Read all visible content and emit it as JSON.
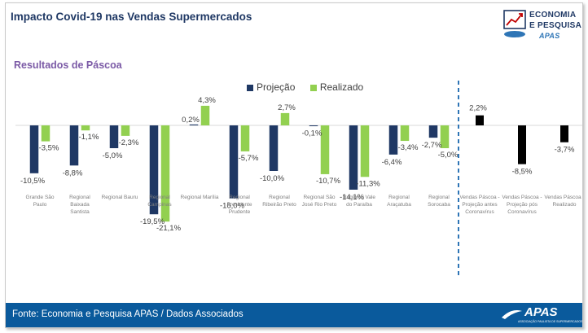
{
  "header": {
    "title": "Impacto Covid-19 nas Vendas Supermercados",
    "logo_line1": "ECONOMIA",
    "logo_line2": "E PESQUISA",
    "logo_brand": "APAS"
  },
  "section": {
    "subtitle": "Resultados de Páscoa"
  },
  "footer": {
    "source": "Fonte: Economia e Pesquisa APAS / Dados Associados",
    "logo_word": "APAS",
    "logo_sub": "ASSOCIAÇÃO PAULISTA DE SUPERMERCADOS"
  },
  "colors": {
    "projecao": "#1f3864",
    "realizado": "#92d050",
    "summary": "#000000",
    "divider": "#2e75b6",
    "footer": "#0a5a9c"
  },
  "chart_data": {
    "type": "bar",
    "legend_position": "top-center",
    "grid": false,
    "ylim": [
      -22,
      5
    ],
    "series": [
      {
        "name": "Projeção",
        "color": "#1f3864"
      },
      {
        "name": "Realizado",
        "color": "#92d050"
      }
    ],
    "groups": [
      {
        "label": [
          "Grande São",
          "Paulo"
        ],
        "projecao": -10.5,
        "realizado": -3.5,
        "projecao_label": "-10,5%",
        "realizado_label": "-3,5%"
      },
      {
        "label": [
          "Regional",
          "Baixada",
          "Santista"
        ],
        "projecao": -8.8,
        "realizado": -1.1,
        "projecao_label": "-8,8%",
        "realizado_label": "-1,1%"
      },
      {
        "label": [
          "Regional Bauru"
        ],
        "projecao": -5.0,
        "realizado": -2.3,
        "projecao_label": "-5,0%",
        "realizado_label": "-2,3%"
      },
      {
        "label": [
          "Regional",
          "Campinas"
        ],
        "projecao": -19.5,
        "realizado": -21.1,
        "projecao_label": "-19,5%",
        "realizado_label": "-21,1%"
      },
      {
        "label": [
          "Regional Marília"
        ],
        "projecao": 0.2,
        "realizado": 4.3,
        "projecao_label": "0,2%",
        "realizado_label": "4,3%"
      },
      {
        "label": [
          "Regional",
          "Presidente",
          "Prudente"
        ],
        "projecao": -16.0,
        "realizado": -5.7,
        "projecao_label": "-16,0%",
        "realizado_label": "-5,7%"
      },
      {
        "label": [
          "Regional",
          "Ribeirão Preto"
        ],
        "projecao": -10.0,
        "realizado": 2.7,
        "projecao_label": "-10,0%",
        "realizado_label": "2,7%"
      },
      {
        "label": [
          "Regional São",
          "José Rio Preto"
        ],
        "projecao": -0.1,
        "realizado": -10.7,
        "projecao_label": "-0,1%",
        "realizado_label": "-10,7%"
      },
      {
        "label": [
          "Regional Vale",
          "do Paraíba"
        ],
        "projecao": -14.1,
        "realizado": -11.3,
        "projecao_label": "-14,1%",
        "realizado_label": "-11,3%"
      },
      {
        "label": [
          "Regional",
          "Araçatuba"
        ],
        "projecao": -6.4,
        "realizado": -3.4,
        "projecao_label": "-6,4%",
        "realizado_label": "-3,4%"
      },
      {
        "label": [
          "Regional",
          "Sorocaba"
        ],
        "projecao": -2.7,
        "realizado": -5.0,
        "projecao_label": "-2,7%",
        "realizado_label": "-5,0%"
      }
    ],
    "summary": [
      {
        "label": [
          "Vendas Páscoa -",
          "Projeção antes",
          "Coronavírus"
        ],
        "value": 2.2,
        "value_label": "2,2%"
      },
      {
        "label": [
          "Vendas Páscoa -",
          "Projeção pós",
          "Coronavírus"
        ],
        "value": -8.5,
        "value_label": "-8,5%"
      },
      {
        "label": [
          "Vendas Páscoa -",
          "Realizado"
        ],
        "value": -3.7,
        "value_label": "-3,7%"
      }
    ]
  }
}
